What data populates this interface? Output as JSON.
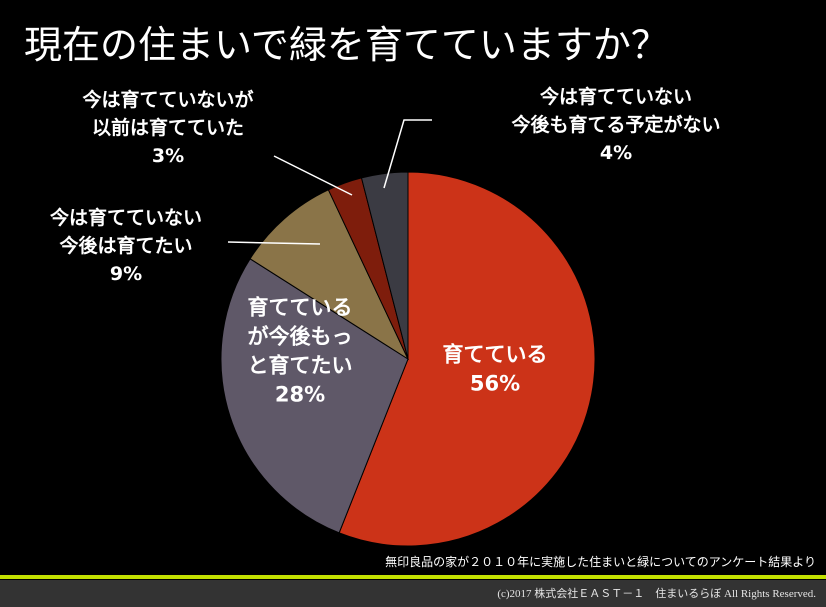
{
  "title": "現在の住まいで緑を育てていますか？",
  "source_note": "無印良品の家が２０１０年に実施した住まいと緑についてのアンケート結果より",
  "footer": {
    "copyright": "(c)2017 株式会社ＥＡＳＴ－１　住まいるらぼ All Rights Reserved."
  },
  "chart_data": {
    "type": "pie",
    "start_angle_deg": 0,
    "direction": "clockwise",
    "slices": [
      {
        "label_lines": [
          "育てている"
        ],
        "percent_label": "56%",
        "value": 56,
        "color": "#cc3318"
      },
      {
        "label_lines": [
          "育てている",
          "が今後もっ",
          "と育てたい"
        ],
        "percent_label": "28%",
        "value": 28,
        "color": "#5f5868"
      },
      {
        "label_lines": [
          "今は育てていない",
          "今後は育てたい"
        ],
        "percent_label": "9%",
        "value": 9,
        "color": "#8a7448"
      },
      {
        "label_lines": [
          "今は育てていないが",
          "以前は育てていた"
        ],
        "percent_label": "3%",
        "value": 3,
        "color": "#7e1d0c"
      },
      {
        "label_lines": [
          "今は育てていない",
          "今後も育てる予定がない"
        ],
        "percent_label": "4%",
        "value": 4,
        "color": "#3b3b43"
      }
    ]
  }
}
